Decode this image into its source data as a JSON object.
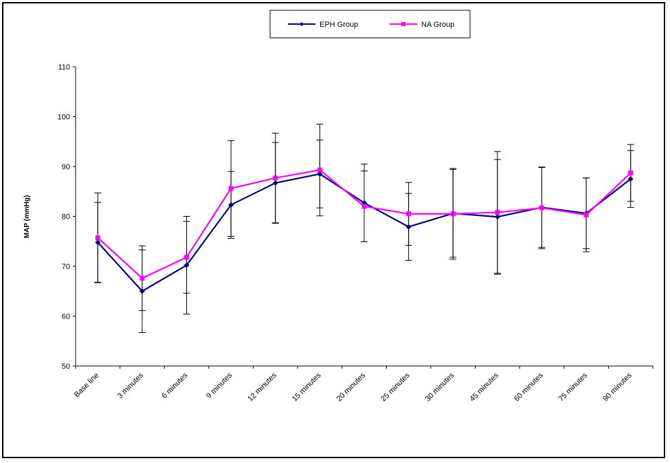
{
  "chart_data": {
    "type": "line",
    "title": "",
    "xlabel": "",
    "ylabel": "MAP (mmHg)",
    "ylim": [
      50,
      110
    ],
    "yticks": [
      50,
      60,
      70,
      80,
      90,
      100,
      110
    ],
    "grid": false,
    "legend_position": "top-center",
    "categories": [
      "Base line",
      "3 minutes",
      "6 minutes",
      "9 minutes",
      "12 minutes",
      "15 minutes",
      "20 minutes",
      "25 minutes",
      "30 minutes",
      "45 minutes",
      "60 minutes",
      "75 minutes",
      "90 minutes"
    ],
    "series": [
      {
        "name": "EPH Group",
        "color": "#000080",
        "marker": "diamond",
        "values": [
          74.8,
          65.0,
          70.2,
          82.3,
          86.7,
          88.5,
          82.7,
          77.9,
          80.6,
          79.9,
          81.8,
          80.6,
          87.5
        ],
        "error": [
          8.0,
          8.3,
          9.8,
          6.7,
          8.1,
          6.8,
          7.8,
          6.7,
          8.8,
          11.5,
          8.0,
          7.1,
          5.7
        ]
      },
      {
        "name": "NA Group",
        "color": "#ff00ff",
        "marker": "square",
        "values": [
          75.7,
          67.6,
          71.8,
          85.6,
          87.7,
          89.3,
          82.0,
          80.5,
          80.5,
          80.8,
          81.7,
          80.3,
          88.7
        ],
        "error": [
          9.0,
          6.5,
          7.2,
          9.6,
          9.0,
          9.2,
          7.1,
          6.3,
          9.1,
          12.2,
          8.2,
          7.4,
          5.7
        ]
      }
    ]
  }
}
